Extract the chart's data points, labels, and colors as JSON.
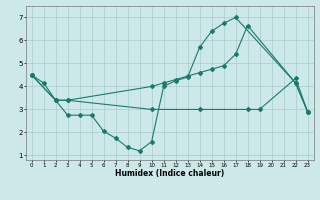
{
  "xlabel": "Humidex (Indice chaleur)",
  "bg_color": "#cce8e8",
  "line_color": "#1a7a6e",
  "grid_color": "#aacccc",
  "xlim": [
    -0.5,
    23.5
  ],
  "ylim": [
    0.8,
    7.5
  ],
  "xticks": [
    0,
    1,
    2,
    3,
    4,
    5,
    6,
    7,
    8,
    9,
    10,
    11,
    12,
    13,
    14,
    15,
    16,
    17,
    18,
    19,
    20,
    21,
    22,
    23
  ],
  "yticks": [
    1,
    2,
    3,
    4,
    5,
    6,
    7
  ],
  "line1_x": [
    0,
    1,
    2,
    3,
    4,
    5,
    6,
    7,
    8,
    9,
    10,
    11,
    12,
    13,
    14,
    15,
    16,
    17,
    22,
    23
  ],
  "line1_y": [
    4.5,
    4.15,
    3.4,
    2.75,
    2.75,
    2.75,
    2.05,
    1.75,
    1.35,
    1.2,
    1.6,
    4.0,
    4.25,
    4.4,
    5.7,
    6.4,
    6.75,
    7.0,
    4.15,
    2.9
  ],
  "line2_x": [
    0,
    2,
    3,
    10,
    11,
    12,
    13,
    14,
    15,
    16,
    17,
    18,
    22,
    23
  ],
  "line2_y": [
    4.5,
    3.4,
    3.4,
    4.0,
    4.15,
    4.3,
    4.45,
    4.6,
    4.75,
    4.9,
    5.4,
    6.65,
    4.15,
    2.9
  ],
  "line3_x": [
    0,
    2,
    3,
    10,
    14,
    18,
    19,
    22,
    23
  ],
  "line3_y": [
    4.5,
    3.4,
    3.4,
    3.0,
    3.0,
    3.0,
    3.0,
    4.35,
    2.9
  ]
}
